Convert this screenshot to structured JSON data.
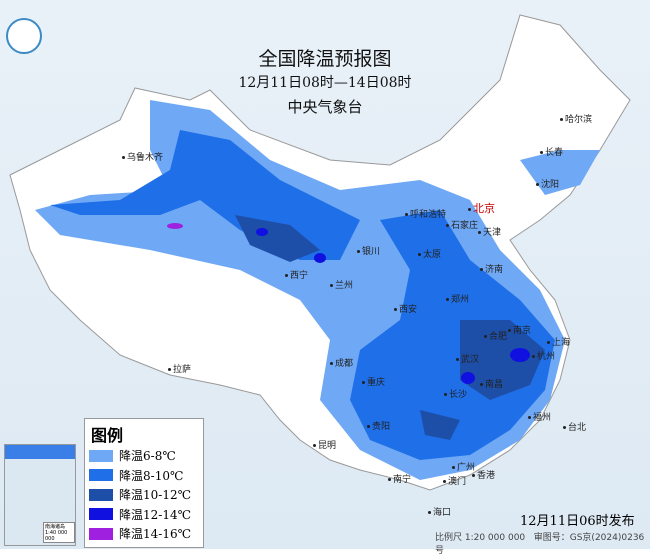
{
  "header": {
    "title": "全国降温预报图",
    "period": "12月11日08时—14日08时",
    "agency": "中央气象台"
  },
  "legend": {
    "title": "图例",
    "items": [
      {
        "label": "降温6-8℃",
        "color": "#6fa8f5"
      },
      {
        "label": "降温8-10℃",
        "color": "#1f6fe8"
      },
      {
        "label": "降温10-12℃",
        "color": "#1e4fa8"
      },
      {
        "label": "降温12-14℃",
        "color": "#1010e0"
      },
      {
        "label": "降温14-16℃",
        "color": "#a020e0"
      }
    ]
  },
  "cities": [
    "哈尔滨",
    "长春",
    "沈阳",
    "乌鲁木齐",
    "北京",
    "天津",
    "呼和浩特",
    "石家庄",
    "太原",
    "济南",
    "银川",
    "西宁",
    "兰州",
    "郑州",
    "西安",
    "合肥",
    "南京",
    "上海",
    "杭州",
    "武汉",
    "成都",
    "拉萨",
    "重庆",
    "长沙",
    "南昌",
    "贵阳",
    "福州",
    "台北",
    "昆明",
    "南宁",
    "广州",
    "澳门",
    "香港",
    "海口"
  ],
  "inset": {
    "caption": "南海诸岛 1:40 000 000"
  },
  "footer": {
    "published": "12月11日06时发布",
    "scale": "比例尺 1:20 000 000",
    "review_no": "审图号：GS京(2024)0236号"
  }
}
